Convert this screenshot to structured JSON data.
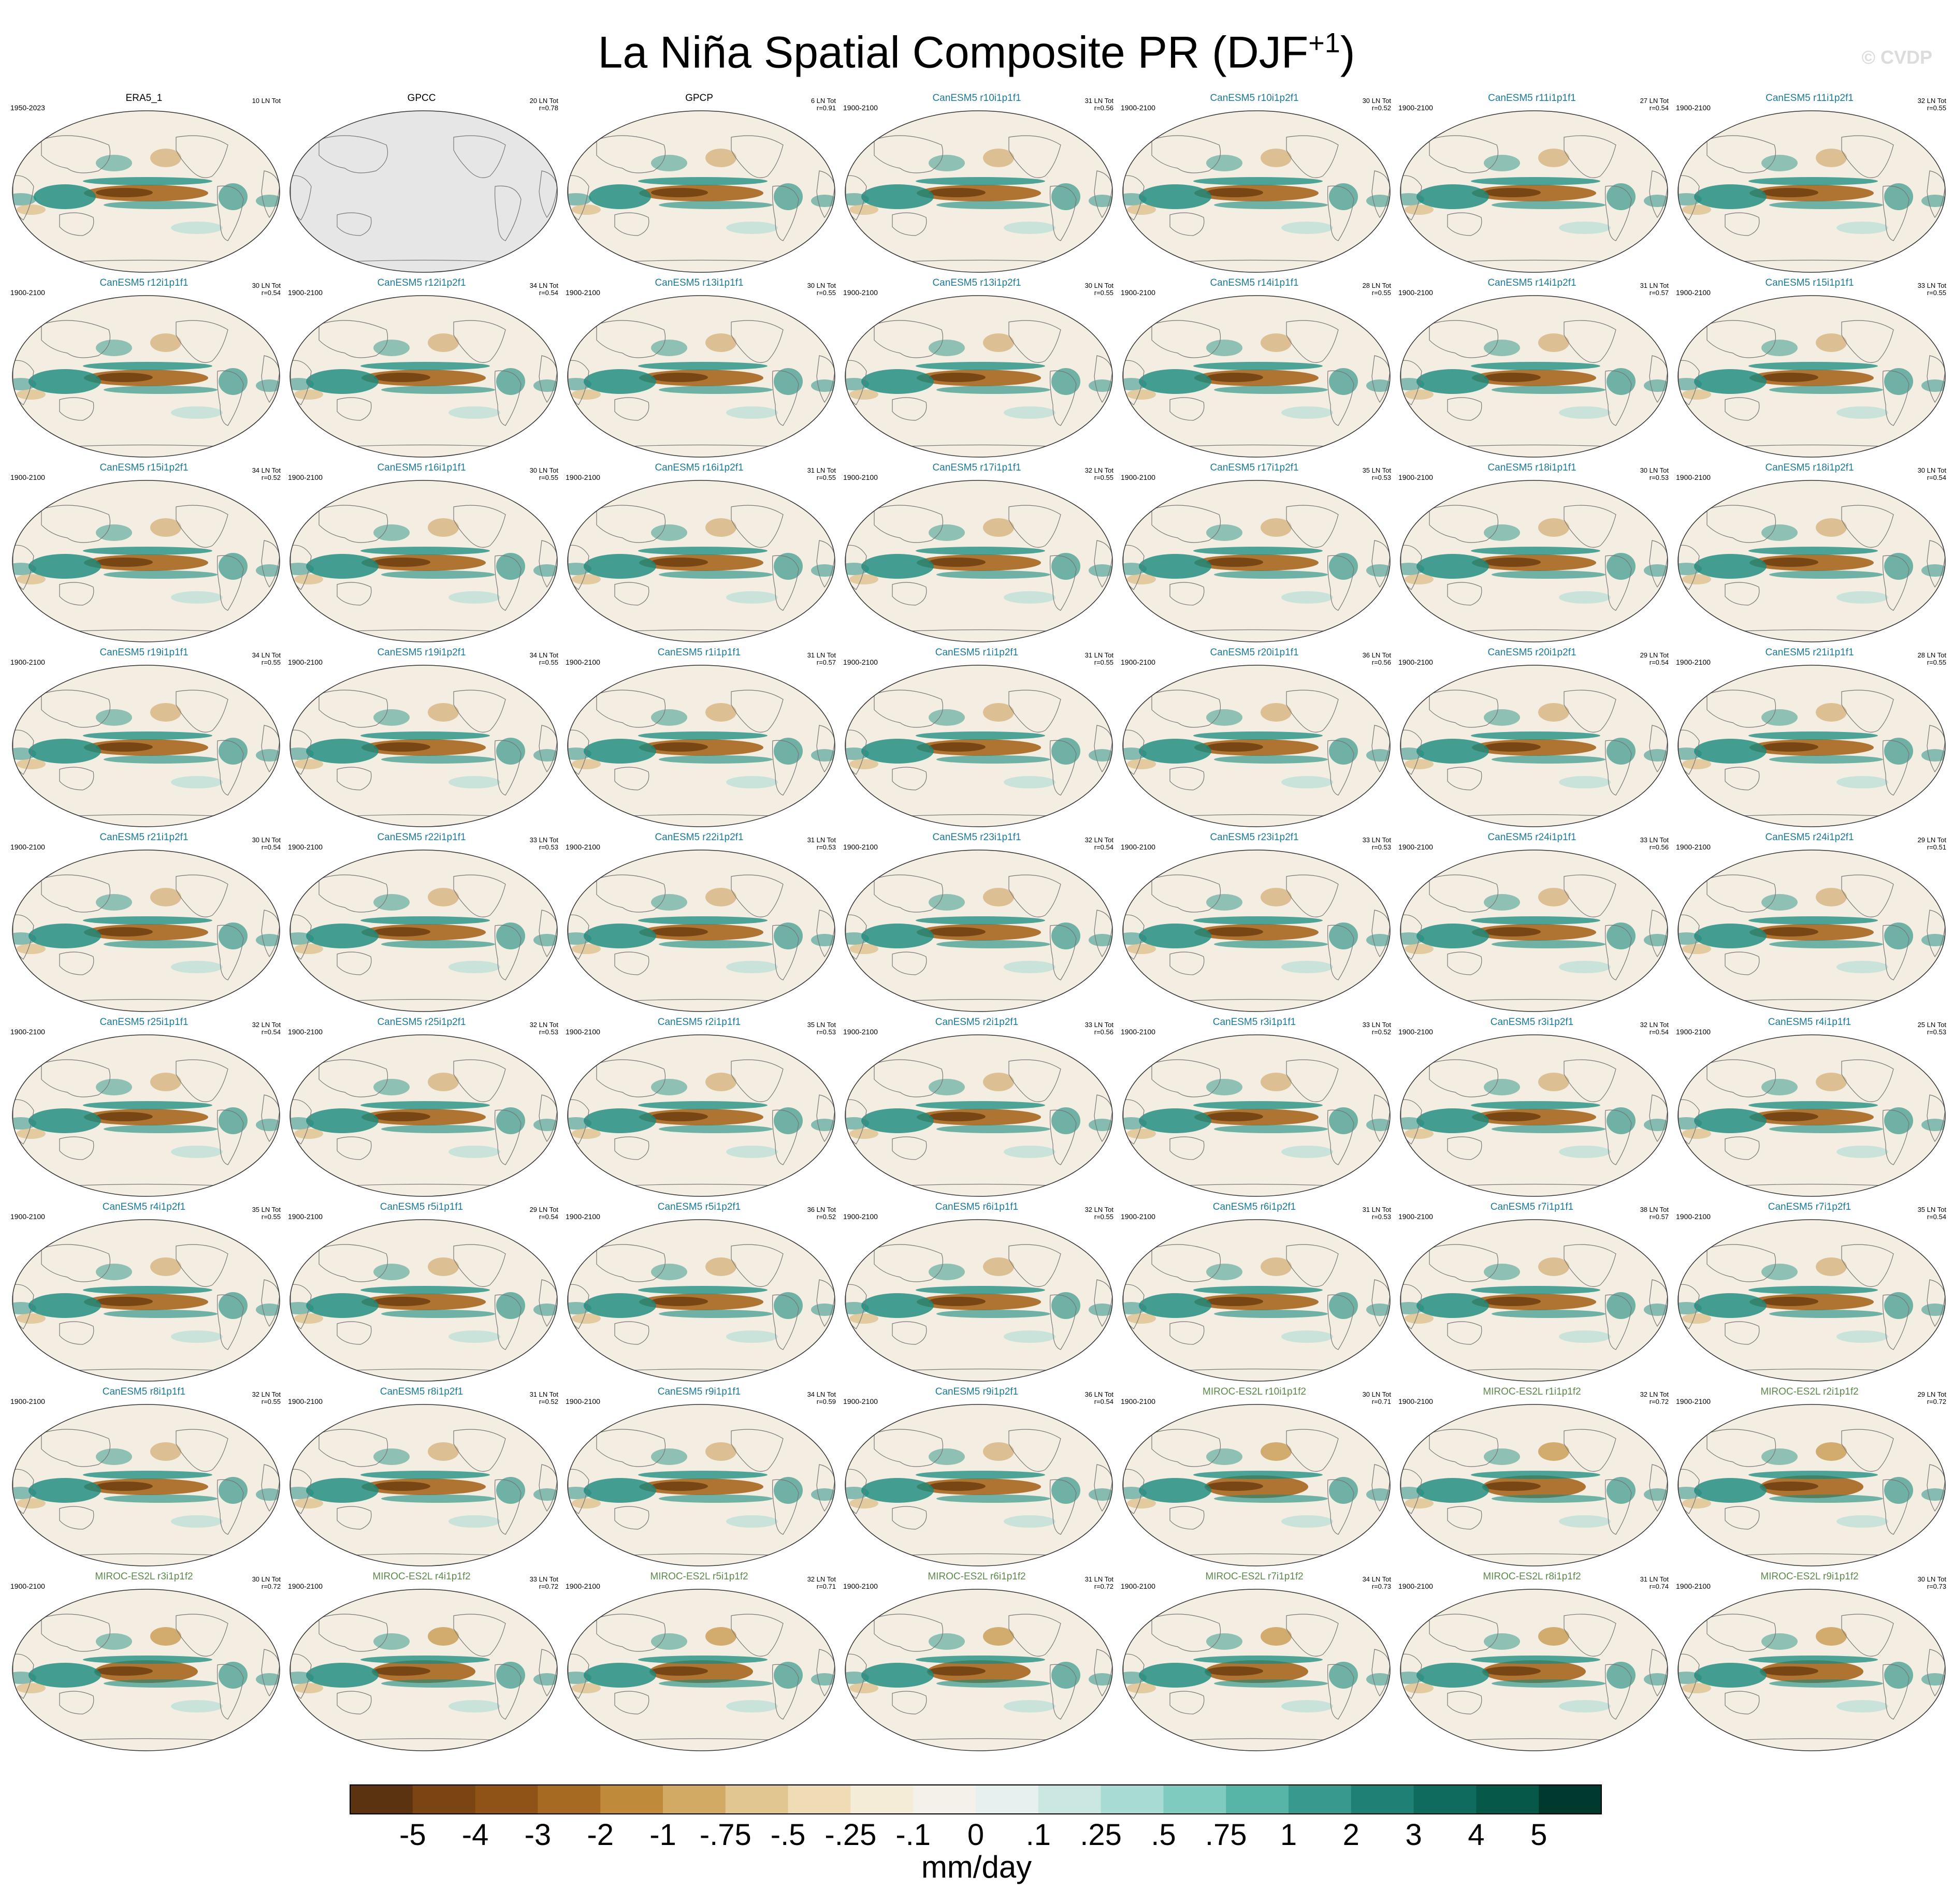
{
  "title": {
    "main": "La Niña Spatial Composite PR (DJF",
    "superscript": "+1",
    "close": ")"
  },
  "watermark": "© CVDP",
  "chart_data": {
    "type": "heatmap",
    "panels": [
      {
        "name": "ERA5_1",
        "group": "obs",
        "years": "1950-2023",
        "count": "10 LN Tot",
        "r": ""
      },
      {
        "name": "GPCC",
        "group": "obs",
        "years": "",
        "count": "20 LN Tot",
        "r": "r=0.78"
      },
      {
        "name": "GPCP",
        "group": "obs",
        "years": "",
        "count": "6 LN Tot",
        "r": "r=0.91"
      },
      {
        "name": "CanESM5 r10i1p1f1",
        "group": "canesm",
        "years": "1900-2100",
        "count": "31 LN Tot",
        "r": "r=0.56"
      },
      {
        "name": "CanESM5 r10i1p2f1",
        "group": "canesm",
        "years": "1900-2100",
        "count": "30 LN Tot",
        "r": "r=0.52"
      },
      {
        "name": "CanESM5 r11i1p1f1",
        "group": "canesm",
        "years": "1900-2100",
        "count": "27 LN Tot",
        "r": "r=0.54"
      },
      {
        "name": "CanESM5 r11i1p2f1",
        "group": "canesm",
        "years": "1900-2100",
        "count": "32 LN Tot",
        "r": "r=0.55"
      },
      {
        "name": "CanESM5 r12i1p1f1",
        "group": "canesm",
        "years": "1900-2100",
        "count": "30 LN Tot",
        "r": "r=0.54"
      },
      {
        "name": "CanESM5 r12i1p2f1",
        "group": "canesm",
        "years": "1900-2100",
        "count": "34 LN Tot",
        "r": "r=0.54"
      },
      {
        "name": "CanESM5 r13i1p1f1",
        "group": "canesm",
        "years": "1900-2100",
        "count": "30 LN Tot",
        "r": "r=0.55"
      },
      {
        "name": "CanESM5 r13i1p2f1",
        "group": "canesm",
        "years": "1900-2100",
        "count": "30 LN Tot",
        "r": "r=0.55"
      },
      {
        "name": "CanESM5 r14i1p1f1",
        "group": "canesm",
        "years": "1900-2100",
        "count": "28 LN Tot",
        "r": "r=0.55"
      },
      {
        "name": "CanESM5 r14i1p2f1",
        "group": "canesm",
        "years": "1900-2100",
        "count": "31 LN Tot",
        "r": "r=0.57"
      },
      {
        "name": "CanESM5 r15i1p1f1",
        "group": "canesm",
        "years": "1900-2100",
        "count": "33 LN Tot",
        "r": "r=0.55"
      },
      {
        "name": "CanESM5 r15i1p2f1",
        "group": "canesm",
        "years": "1900-2100",
        "count": "34 LN Tot",
        "r": "r=0.52"
      },
      {
        "name": "CanESM5 r16i1p1f1",
        "group": "canesm",
        "years": "1900-2100",
        "count": "30 LN Tot",
        "r": "r=0.55"
      },
      {
        "name": "CanESM5 r16i1p2f1",
        "group": "canesm",
        "years": "1900-2100",
        "count": "31 LN Tot",
        "r": "r=0.55"
      },
      {
        "name": "CanESM5 r17i1p1f1",
        "group": "canesm",
        "years": "1900-2100",
        "count": "32 LN Tot",
        "r": "r=0.55"
      },
      {
        "name": "CanESM5 r17i1p2f1",
        "group": "canesm",
        "years": "1900-2100",
        "count": "35 LN Tot",
        "r": "r=0.53"
      },
      {
        "name": "CanESM5 r18i1p1f1",
        "group": "canesm",
        "years": "1900-2100",
        "count": "30 LN Tot",
        "r": "r=0.53"
      },
      {
        "name": "CanESM5 r18i1p2f1",
        "group": "canesm",
        "years": "1900-2100",
        "count": "30 LN Tot",
        "r": "r=0.54"
      },
      {
        "name": "CanESM5 r19i1p1f1",
        "group": "canesm",
        "years": "1900-2100",
        "count": "34 LN Tot",
        "r": "r=0.55"
      },
      {
        "name": "CanESM5 r19i1p2f1",
        "group": "canesm",
        "years": "1900-2100",
        "count": "34 LN Tot",
        "r": "r=0.55"
      },
      {
        "name": "CanESM5 r1i1p1f1",
        "group": "canesm",
        "years": "1900-2100",
        "count": "31 LN Tot",
        "r": "r=0.57"
      },
      {
        "name": "CanESM5 r1i1p2f1",
        "group": "canesm",
        "years": "1900-2100",
        "count": "31 LN Tot",
        "r": "r=0.55"
      },
      {
        "name": "CanESM5 r20i1p1f1",
        "group": "canesm",
        "years": "1900-2100",
        "count": "36 LN Tot",
        "r": "r=0.56"
      },
      {
        "name": "CanESM5 r20i1p2f1",
        "group": "canesm",
        "years": "1900-2100",
        "count": "29 LN Tot",
        "r": "r=0.54"
      },
      {
        "name": "CanESM5 r21i1p1f1",
        "group": "canesm",
        "years": "1900-2100",
        "count": "28 LN Tot",
        "r": "r=0.55"
      },
      {
        "name": "CanESM5 r21i1p2f1",
        "group": "canesm",
        "years": "1900-2100",
        "count": "30 LN Tot",
        "r": "r=0.54"
      },
      {
        "name": "CanESM5 r22i1p1f1",
        "group": "canesm",
        "years": "1900-2100",
        "count": "33 LN Tot",
        "r": "r=0.53"
      },
      {
        "name": "CanESM5 r22i1p2f1",
        "group": "canesm",
        "years": "1900-2100",
        "count": "31 LN Tot",
        "r": "r=0.53"
      },
      {
        "name": "CanESM5 r23i1p1f1",
        "group": "canesm",
        "years": "1900-2100",
        "count": "32 LN Tot",
        "r": "r=0.54"
      },
      {
        "name": "CanESM5 r23i1p2f1",
        "group": "canesm",
        "years": "1900-2100",
        "count": "33 LN Tot",
        "r": "r=0.53"
      },
      {
        "name": "CanESM5 r24i1p1f1",
        "group": "canesm",
        "years": "1900-2100",
        "count": "33 LN Tot",
        "r": "r=0.56"
      },
      {
        "name": "CanESM5 r24i1p2f1",
        "group": "canesm",
        "years": "1900-2100",
        "count": "29 LN Tot",
        "r": "r=0.51"
      },
      {
        "name": "CanESM5 r25i1p1f1",
        "group": "canesm",
        "years": "1900-2100",
        "count": "32 LN Tot",
        "r": "r=0.54"
      },
      {
        "name": "CanESM5 r25i1p2f1",
        "group": "canesm",
        "years": "1900-2100",
        "count": "32 LN Tot",
        "r": "r=0.53"
      },
      {
        "name": "CanESM5 r2i1p1f1",
        "group": "canesm",
        "years": "1900-2100",
        "count": "35 LN Tot",
        "r": "r=0.53"
      },
      {
        "name": "CanESM5 r2i1p2f1",
        "group": "canesm",
        "years": "1900-2100",
        "count": "33 LN Tot",
        "r": "r=0.56"
      },
      {
        "name": "CanESM5 r3i1p1f1",
        "group": "canesm",
        "years": "1900-2100",
        "count": "33 LN Tot",
        "r": "r=0.52"
      },
      {
        "name": "CanESM5 r3i1p2f1",
        "group": "canesm",
        "years": "1900-2100",
        "count": "32 LN Tot",
        "r": "r=0.54"
      },
      {
        "name": "CanESM5 r4i1p1f1",
        "group": "canesm",
        "years": "1900-2100",
        "count": "25 LN Tot",
        "r": "r=0.53"
      },
      {
        "name": "CanESM5 r4i1p2f1",
        "group": "canesm",
        "years": "1900-2100",
        "count": "35 LN Tot",
        "r": "r=0.55"
      },
      {
        "name": "CanESM5 r5i1p1f1",
        "group": "canesm",
        "years": "1900-2100",
        "count": "29 LN Tot",
        "r": "r=0.54"
      },
      {
        "name": "CanESM5 r5i1p2f1",
        "group": "canesm",
        "years": "1900-2100",
        "count": "36 LN Tot",
        "r": "r=0.52"
      },
      {
        "name": "CanESM5 r6i1p1f1",
        "group": "canesm",
        "years": "1900-2100",
        "count": "32 LN Tot",
        "r": "r=0.55"
      },
      {
        "name": "CanESM5 r6i1p2f1",
        "group": "canesm",
        "years": "1900-2100",
        "count": "31 LN Tot",
        "r": "r=0.53"
      },
      {
        "name": "CanESM5 r7i1p1f1",
        "group": "canesm",
        "years": "1900-2100",
        "count": "38 LN Tot",
        "r": "r=0.57"
      },
      {
        "name": "CanESM5 r7i1p2f1",
        "group": "canesm",
        "years": "1900-2100",
        "count": "35 LN Tot",
        "r": "r=0.54"
      },
      {
        "name": "CanESM5 r8i1p1f1",
        "group": "canesm",
        "years": "1900-2100",
        "count": "32 LN Tot",
        "r": "r=0.55"
      },
      {
        "name": "CanESM5 r8i1p2f1",
        "group": "canesm",
        "years": "1900-2100",
        "count": "31 LN Tot",
        "r": "r=0.52"
      },
      {
        "name": "CanESM5 r9i1p1f1",
        "group": "canesm",
        "years": "1900-2100",
        "count": "34 LN Tot",
        "r": "r=0.59"
      },
      {
        "name": "CanESM5 r9i1p2f1",
        "group": "canesm",
        "years": "1900-2100",
        "count": "36 LN Tot",
        "r": "r=0.54"
      },
      {
        "name": "MIROC-ES2L r10i1p1f2",
        "group": "miroc",
        "years": "1900-2100",
        "count": "30 LN Tot",
        "r": "r=0.71"
      },
      {
        "name": "MIROC-ES2L r1i1p1f2",
        "group": "miroc",
        "years": "1900-2100",
        "count": "32 LN Tot",
        "r": "r=0.72"
      },
      {
        "name": "MIROC-ES2L r2i1p1f2",
        "group": "miroc",
        "years": "1900-2100",
        "count": "29 LN Tot",
        "r": "r=0.72"
      },
      {
        "name": "MIROC-ES2L r3i1p1f2",
        "group": "miroc",
        "years": "1900-2100",
        "count": "30 LN Tot",
        "r": "r=0.72"
      },
      {
        "name": "MIROC-ES2L r4i1p1f2",
        "group": "miroc",
        "years": "1900-2100",
        "count": "33 LN Tot",
        "r": "r=0.72"
      },
      {
        "name": "MIROC-ES2L r5i1p1f2",
        "group": "miroc",
        "years": "1900-2100",
        "count": "32 LN Tot",
        "r": "r=0.71"
      },
      {
        "name": "MIROC-ES2L r6i1p1f2",
        "group": "miroc",
        "years": "1900-2100",
        "count": "31 LN Tot",
        "r": "r=0.72"
      },
      {
        "name": "MIROC-ES2L r7i1p1f2",
        "group": "miroc",
        "years": "1900-2100",
        "count": "34 LN Tot",
        "r": "r=0.73"
      },
      {
        "name": "MIROC-ES2L r8i1p1f2",
        "group": "miroc",
        "years": "1900-2100",
        "count": "31 LN Tot",
        "r": "r=0.74"
      },
      {
        "name": "MIROC-ES2L r9i1p1f2",
        "group": "miroc",
        "years": "1900-2100",
        "count": "30 LN Tot",
        "r": "r=0.73"
      }
    ],
    "colorbar": {
      "labels": [
        "-5",
        "-4",
        "-3",
        "-2",
        "-1",
        "-.75",
        "-.5",
        "-.25",
        "-.1",
        "0",
        ".1",
        ".25",
        ".5",
        ".75",
        "1",
        "2",
        "3",
        "4",
        "5"
      ],
      "colors": [
        "#5c3310",
        "#7a4512",
        "#8f5317",
        "#a76a22",
        "#bf8a3a",
        "#d3aa63",
        "#e2c68f",
        "#efdcb5",
        "#f5ecd7",
        "#f4f1ea",
        "#e6f1ef",
        "#cbe7e2",
        "#a8dbd3",
        "#80cbc0",
        "#57b5a8",
        "#38998e",
        "#1f8175",
        "#0e6b5e",
        "#065849",
        "#003a2e"
      ],
      "unit": "mm/day"
    }
  },
  "colors": {
    "ocean": "#f3ede2",
    "dry": "#a8661f",
    "wet": "#17897d",
    "land_gray": "#e6e6e6",
    "coast": "#777777",
    "obs_title": "#000000",
    "canesm_title": "#1b7a9a",
    "miroc_title": "#5b8a4a"
  }
}
